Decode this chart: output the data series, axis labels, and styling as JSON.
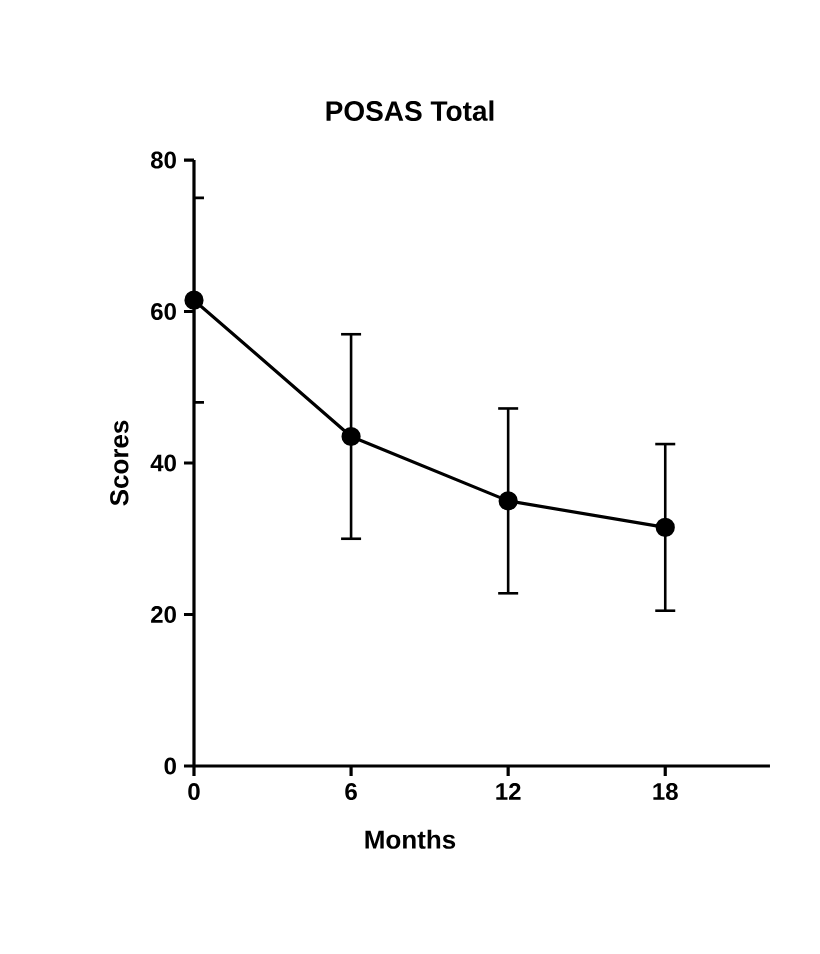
{
  "chart_data": {
    "type": "line",
    "title": "POSAS Total",
    "xlabel": "Months",
    "ylabel": "Scores",
    "x": [
      0,
      6,
      12,
      18
    ],
    "series": [
      {
        "color": "#000000",
        "values": [
          61.5,
          43.5,
          35,
          31.5
        ],
        "errors": [
          13.5,
          13.5,
          12.2,
          11
        ]
      }
    ],
    "xlim": [
      0,
      22
    ],
    "xticks": [
      0,
      6,
      12,
      18
    ],
    "ylim": [
      0,
      80
    ],
    "yticks": [
      0,
      20,
      40,
      60,
      80
    ],
    "marker": "circle",
    "line_style": "solid",
    "grid": false
  }
}
